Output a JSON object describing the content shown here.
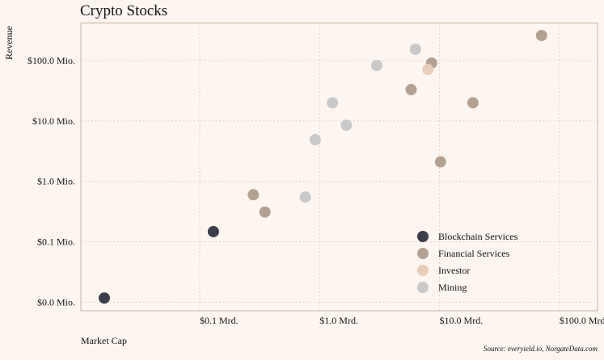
{
  "chart_data": {
    "type": "scatter",
    "title": "Crypto Stocks",
    "xlabel": "Market Cap",
    "ylabel": "Revenue",
    "source": "Source: everyield.io, NorgateData.com",
    "x_scale": "log",
    "y_scale": "log",
    "x_unit": "Mrd. USD",
    "y_unit": "Mio. USD",
    "xlim": [
      0.0102,
      208
    ],
    "ylim": [
      0.0072,
      425
    ],
    "grid": true,
    "legend_position": "bottom-right",
    "x_ticks": [
      {
        "value": 0.1,
        "label": "$0.1 Mrd."
      },
      {
        "value": 1,
        "label": "$1.0 Mrd."
      },
      {
        "value": 10,
        "label": "$10.0 Mrd."
      },
      {
        "value": 100,
        "label": "$100.0 Mrd."
      }
    ],
    "y_ticks": [
      {
        "value": 100,
        "label": "$100.0 Mio."
      },
      {
        "value": 10,
        "label": "$10.0 Mio."
      },
      {
        "value": 1,
        "label": "$1.0 Mio."
      },
      {
        "value": 0.1,
        "label": "$0.1 Mio."
      },
      {
        "value": 0.01,
        "label": "$0.0 Mio."
      }
    ],
    "series": [
      {
        "name": "Blockchain Services",
        "color": "#3b3d4b",
        "points": [
          [
            0.016,
            0.0117
          ],
          [
            0.13,
            0.147
          ]
        ]
      },
      {
        "name": "Financial Services",
        "color": "#b5a190",
        "points": [
          [
            0.28,
            0.6
          ],
          [
            0.35,
            0.31
          ],
          [
            5.8,
            33
          ],
          [
            8.6,
            91
          ],
          [
            19,
            20
          ],
          [
            10.2,
            2.1
          ],
          [
            71,
            260
          ]
        ]
      },
      {
        "name": "Investor",
        "color": "#e8cdb8",
        "points": [
          [
            8.0,
            71
          ]
        ]
      },
      {
        "name": "Mining",
        "color": "#c9c9c9",
        "points": [
          [
            0.76,
            0.55
          ],
          [
            0.92,
            4.9
          ],
          [
            1.67,
            8.5
          ],
          [
            1.28,
            20
          ],
          [
            3.0,
            83
          ],
          [
            6.3,
            154
          ]
        ]
      }
    ]
  }
}
